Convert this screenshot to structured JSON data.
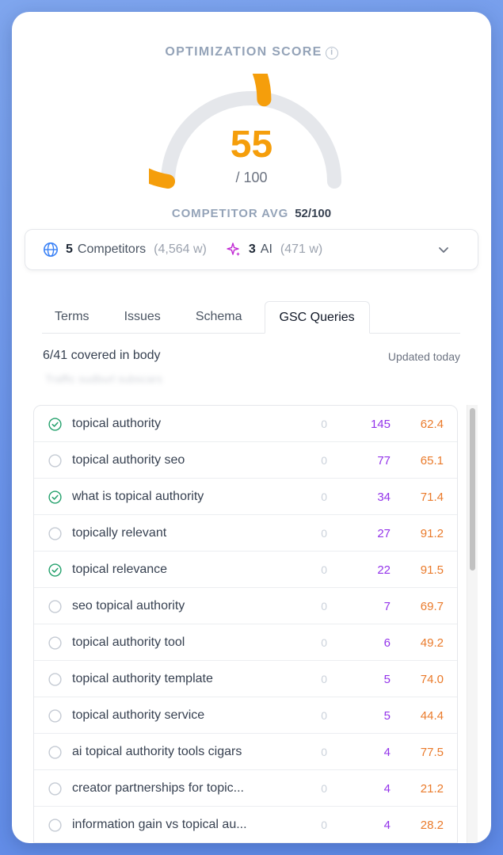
{
  "score": {
    "title": "OPTIMIZATION SCORE",
    "info_glyph": "i",
    "value": "55",
    "max": "/ 100",
    "fraction": 0.55,
    "color": "#f59e0b"
  },
  "competitor_avg": {
    "label": "COMPETITOR AVG",
    "value": "52/100"
  },
  "competitors": {
    "competitors_count": "5",
    "competitors_label": "Competitors",
    "competitors_words": "(4,564 w)",
    "ai_count": "3",
    "ai_label": "AI",
    "ai_words": "(471 w)",
    "icons": [
      "globe-icon",
      "sparkles-icon",
      "chevron-down-icon"
    ]
  },
  "tabs": [
    {
      "label": "Terms"
    },
    {
      "label": "Issues"
    },
    {
      "label": "Schema"
    },
    {
      "label": "GSC Queries",
      "active": true
    }
  ],
  "gsc": {
    "coverage": "6/41 covered in body",
    "updated": "Updated today",
    "blurred_text": "Traffic sudburl subscars",
    "rows": [
      {
        "term": "topical authority",
        "covered": true,
        "count": "0",
        "clicks": "145",
        "position": "62.4"
      },
      {
        "term": "topical authority seo",
        "covered": false,
        "count": "0",
        "clicks": "77",
        "position": "65.1"
      },
      {
        "term": "what is topical authority",
        "covered": true,
        "count": "0",
        "clicks": "34",
        "position": "71.4"
      },
      {
        "term": "topically relevant",
        "covered": false,
        "count": "0",
        "clicks": "27",
        "position": "91.2"
      },
      {
        "term": "topical relevance",
        "covered": true,
        "count": "0",
        "clicks": "22",
        "position": "91.5"
      },
      {
        "term": "seo topical authority",
        "covered": false,
        "count": "0",
        "clicks": "7",
        "position": "69.7"
      },
      {
        "term": "topical authority tool",
        "covered": false,
        "count": "0",
        "clicks": "6",
        "position": "49.2"
      },
      {
        "term": "topical authority template",
        "covered": false,
        "count": "0",
        "clicks": "5",
        "position": "74.0"
      },
      {
        "term": "topical authority service",
        "covered": false,
        "count": "0",
        "clicks": "5",
        "position": "44.4"
      },
      {
        "term": "ai topical authority tools cigars",
        "covered": false,
        "count": "0",
        "clicks": "4",
        "position": "77.5"
      },
      {
        "term": "creator partnerships for topic...",
        "covered": false,
        "count": "0",
        "clicks": "4",
        "position": "21.2"
      },
      {
        "term": "information gain vs topical au...",
        "covered": false,
        "count": "0",
        "clicks": "4",
        "position": "28.2"
      },
      {
        "term": "",
        "covered": false,
        "count": "",
        "clicks": "",
        "position": ""
      }
    ]
  },
  "colors": {
    "accent_orange": "#f59e0b",
    "clicks_purple": "#9333ea",
    "position_orange": "#ea7a2a",
    "covered_green": "#22a06b"
  }
}
